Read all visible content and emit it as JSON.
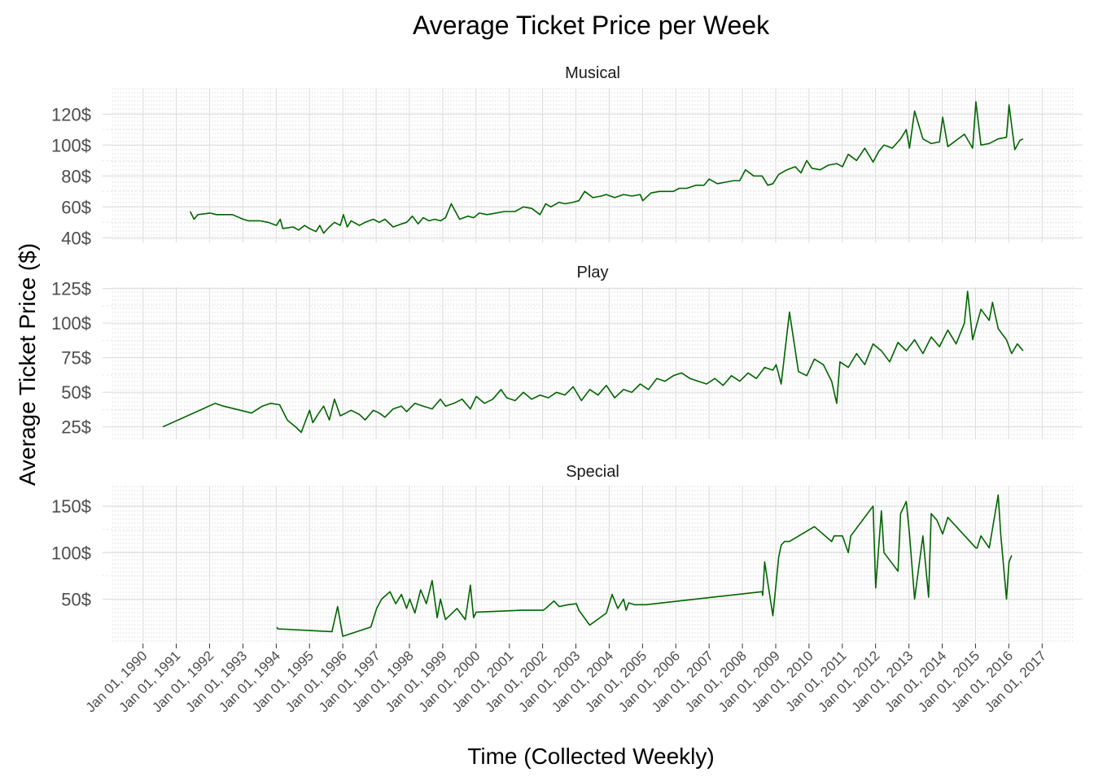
{
  "chart_data": {
    "type": "line",
    "title": "Average Ticket Price per Week",
    "xlabel": "Time (Collected Weekly)",
    "ylabel": "Average Ticket Price ($)",
    "x_type": "date",
    "xlim": [
      "1990-01-01",
      "2017-01-01"
    ],
    "x_ticks": [
      "Jan 01, 1990",
      "Jan 01, 1991",
      "Jan 01, 1992",
      "Jan 01, 1993",
      "Jan 01, 1994",
      "Jan 01, 1995",
      "Jan 01, 1996",
      "Jan 01, 1997",
      "Jan 01, 1998",
      "Jan 01, 1999",
      "Jan 01, 2000",
      "Jan 01, 2001",
      "Jan 01, 2002",
      "Jan 01, 2003",
      "Jan 01, 2004",
      "Jan 01, 2005",
      "Jan 01, 2006",
      "Jan 01, 2007",
      "Jan 01, 2008",
      "Jan 01, 2009",
      "Jan 01, 2010",
      "Jan 01, 2011",
      "Jan 01, 2012",
      "Jan 01, 2013",
      "Jan 01, 2014",
      "Jan 01, 2015",
      "Jan 01, 2016",
      "Jan 01, 2017"
    ],
    "grid": true,
    "legend": "none",
    "line_color": "#006400",
    "panels": [
      {
        "name": "Musical",
        "ylim": [
          37,
          137
        ],
        "y_ticks": [
          40,
          60,
          80,
          100,
          120
        ],
        "y_tick_labels": [
          "40$",
          "60$",
          "80$",
          "100$",
          "120$"
        ],
        "x": [
          "1991-06-03",
          "1991-07-15",
          "1991-08-26",
          "1992-01-06",
          "1992-03-16",
          "1992-09-07",
          "1993-01-04",
          "1993-03-01",
          "1993-07-05",
          "1993-10-04",
          "1994-01-03",
          "1994-02-14",
          "1994-03-14",
          "1994-07-04",
          "1994-09-05",
          "1994-11-07",
          "1995-01-02",
          "1995-03-13",
          "1995-04-24",
          "1995-06-05",
          "1995-08-07",
          "1995-10-02",
          "1995-12-04",
          "1996-01-08",
          "1996-02-19",
          "1996-04-01",
          "1996-07-01",
          "1996-09-02",
          "1996-12-02",
          "1997-02-03",
          "1997-04-07",
          "1997-07-07",
          "1997-10-06",
          "1997-12-01",
          "1998-02-02",
          "1998-04-06",
          "1998-06-01",
          "1998-08-03",
          "1998-10-05",
          "1998-12-07",
          "1999-02-01",
          "1999-04-05",
          "1999-07-05",
          "1999-10-04",
          "1999-12-06",
          "2000-02-07",
          "2000-05-01",
          "2000-08-07",
          "2000-11-06",
          "2001-01-01",
          "2001-03-05",
          "2001-06-04",
          "2001-09-03",
          "2001-12-03",
          "2002-02-04",
          "2002-04-01",
          "2002-07-01",
          "2002-09-02",
          "2002-12-02",
          "2003-02-03",
          "2003-04-07",
          "2003-07-07",
          "2003-10-06",
          "2003-12-01",
          "2004-03-01",
          "2004-06-07",
          "2004-09-06",
          "2004-12-06",
          "2005-01-03",
          "2005-04-04",
          "2005-07-04",
          "2005-10-03",
          "2005-12-05",
          "2006-02-06",
          "2006-05-01",
          "2006-08-07",
          "2006-11-06",
          "2007-01-01",
          "2007-04-02",
          "2007-07-02",
          "2007-10-01",
          "2007-12-03",
          "2008-02-04",
          "2008-05-05",
          "2008-08-04",
          "2008-10-06",
          "2008-12-01",
          "2009-02-02",
          "2009-05-04",
          "2009-08-03",
          "2009-10-05",
          "2009-12-07",
          "2010-02-01",
          "2010-05-03",
          "2010-08-02",
          "2010-11-01",
          "2011-01-03",
          "2011-03-07",
          "2011-06-06",
          "2011-09-05",
          "2011-12-05",
          "2012-02-06",
          "2012-04-02",
          "2012-07-02",
          "2012-10-01",
          "2012-12-03",
          "2013-01-07",
          "2013-03-04",
          "2013-06-03",
          "2013-09-02",
          "2013-12-02",
          "2014-01-06",
          "2014-03-03",
          "2014-06-02",
          "2014-09-01",
          "2014-12-01",
          "2015-01-05",
          "2015-03-02",
          "2015-06-01",
          "2015-09-07",
          "2015-12-07",
          "2016-01-04",
          "2016-03-07",
          "2016-05-02",
          "2016-06-06"
        ],
        "values": [
          57,
          52,
          55,
          56,
          55,
          55,
          52,
          51,
          51,
          50,
          48,
          52,
          46,
          47,
          45,
          48,
          46,
          44,
          48,
          43,
          47,
          50,
          48,
          55,
          47,
          51,
          48,
          50,
          52,
          50,
          52,
          47,
          49,
          50,
          54,
          49,
          53,
          51,
          52,
          51,
          53,
          62,
          52,
          54,
          53,
          56,
          55,
          56,
          57,
          57,
          57,
          60,
          59,
          55,
          62,
          60,
          63,
          62,
          63,
          64,
          70,
          66,
          67,
          68,
          66,
          68,
          67,
          68,
          64,
          69,
          70,
          70,
          70,
          72,
          72,
          74,
          74,
          78,
          75,
          76,
          77,
          77,
          84,
          80,
          80,
          74,
          75,
          81,
          84,
          86,
          82,
          90,
          85,
          84,
          87,
          88,
          86,
          94,
          90,
          98,
          89,
          96,
          100,
          98,
          104,
          110,
          98,
          122,
          104,
          101,
          102,
          118,
          99,
          103,
          107,
          98,
          128,
          100,
          101,
          104,
          105,
          126,
          97,
          103,
          104
        ]
      },
      {
        "name": "Play",
        "ylim": [
          16,
          126
        ],
        "y_ticks": [
          25,
          50,
          75,
          100,
          125
        ],
        "y_tick_labels": [
          "25$",
          "50$",
          "75$",
          "100$",
          "125$"
        ],
        "x": [
          "1990-08-06",
          "1992-03-02",
          "1992-06-01",
          "1993-04-05",
          "1993-08-02",
          "1993-11-01",
          "1994-02-07",
          "1994-05-02",
          "1994-08-01",
          "1994-10-03",
          "1995-01-02",
          "1995-02-06",
          "1995-04-03",
          "1995-06-05",
          "1995-08-07",
          "1995-10-02",
          "1995-12-04",
          "1996-02-05",
          "1996-04-01",
          "1996-07-01",
          "1996-09-02",
          "1996-12-02",
          "1997-02-03",
          "1997-04-07",
          "1997-07-07",
          "1997-10-06",
          "1997-12-01",
          "1998-03-02",
          "1998-06-01",
          "1998-09-07",
          "1998-12-07",
          "1999-02-01",
          "1999-05-03",
          "1999-08-02",
          "1999-11-01",
          "2000-01-03",
          "2000-04-03",
          "2000-07-03",
          "2000-10-02",
          "2000-12-04",
          "2001-03-05",
          "2001-06-04",
          "2001-09-03",
          "2001-12-03",
          "2002-03-04",
          "2002-06-03",
          "2002-09-02",
          "2002-12-02",
          "2003-03-03",
          "2003-06-02",
          "2003-09-01",
          "2003-12-01",
          "2004-03-01",
          "2004-06-07",
          "2004-09-06",
          "2004-12-06",
          "2005-03-07",
          "2005-06-06",
          "2005-09-05",
          "2005-12-05",
          "2006-03-06",
          "2006-06-05",
          "2006-09-04",
          "2006-12-04",
          "2007-03-05",
          "2007-06-04",
          "2007-09-03",
          "2007-12-03",
          "2008-03-03",
          "2008-06-02",
          "2008-09-01",
          "2008-12-01",
          "2009-01-05",
          "2009-03-02",
          "2009-06-01",
          "2009-09-07",
          "2009-12-07",
          "2010-03-01",
          "2010-06-07",
          "2010-09-06",
          "2010-11-01",
          "2010-12-06",
          "2011-03-07",
          "2011-06-06",
          "2011-09-05",
          "2011-12-05",
          "2012-03-05",
          "2012-06-04",
          "2012-09-03",
          "2012-12-03",
          "2013-03-04",
          "2013-06-03",
          "2013-09-02",
          "2013-12-02",
          "2014-03-03",
          "2014-06-02",
          "2014-09-01",
          "2014-10-06",
          "2014-12-01",
          "2015-03-02",
          "2015-06-01",
          "2015-07-06",
          "2015-09-07",
          "2015-12-07",
          "2016-02-01",
          "2016-04-04",
          "2016-06-06"
        ],
        "values": [
          25,
          42,
          40,
          35,
          40,
          42,
          41,
          30,
          25,
          21,
          37,
          28,
          34,
          40,
          30,
          45,
          33,
          35,
          37,
          34,
          30,
          37,
          35,
          32,
          38,
          40,
          36,
          42,
          40,
          38,
          45,
          40,
          42,
          45,
          38,
          47,
          42,
          45,
          52,
          46,
          44,
          50,
          45,
          48,
          46,
          50,
          48,
          54,
          44,
          52,
          48,
          55,
          46,
          52,
          50,
          56,
          52,
          60,
          58,
          62,
          64,
          60,
          58,
          56,
          60,
          55,
          62,
          58,
          64,
          60,
          68,
          66,
          70,
          56,
          108,
          65,
          62,
          74,
          70,
          58,
          42,
          72,
          68,
          78,
          70,
          85,
          80,
          72,
          86,
          80,
          88,
          78,
          90,
          83,
          95,
          85,
          100,
          123,
          88,
          110,
          102,
          115,
          96,
          88,
          78,
          85,
          80
        ]
      },
      {
        "name": "Special",
        "ylim": [
          4,
          172
        ],
        "y_ticks": [
          50,
          100,
          150
        ],
        "y_tick_labels": [
          "50$",
          "100$",
          "150$"
        ],
        "x": [
          "1994-01-10",
          "1994-01-17",
          "1995-09-04",
          "1995-11-06",
          "1996-01-01",
          "1996-11-04",
          "1997-01-06",
          "1997-03-03",
          "1997-06-02",
          "1997-08-04",
          "1997-10-06",
          "1997-12-01",
          "1998-01-05",
          "1998-03-02",
          "1998-05-04",
          "1998-07-06",
          "1998-09-07",
          "1998-11-02",
          "1998-12-07",
          "1999-02-01",
          "1999-06-07",
          "1999-09-06",
          "1999-11-01",
          "1999-12-06",
          "2000-01-03",
          "2000-01-10",
          "2001-05-07",
          "2002-01-07",
          "2002-02-04",
          "2002-05-06",
          "2002-07-01",
          "2002-10-07",
          "2003-01-06",
          "2003-02-03",
          "2003-06-02",
          "2003-12-01",
          "2004-02-02",
          "2004-04-05",
          "2004-06-07",
          "2004-07-05",
          "2004-08-02",
          "2004-10-04",
          "2005-01-03",
          "2005-02-07",
          "2008-08-04",
          "2008-08-11",
          "2008-09-01",
          "2008-12-01",
          "2009-02-02",
          "2009-03-02",
          "2009-04-06",
          "2009-06-01",
          "2010-03-01",
          "2010-09-06",
          "2010-10-04",
          "2011-01-03",
          "2011-03-07",
          "2011-04-04",
          "2011-12-05",
          "2012-01-02",
          "2012-03-05",
          "2012-04-02",
          "2012-09-03",
          "2012-10-01",
          "2012-12-03",
          "2013-01-07",
          "2013-03-04",
          "2013-06-03",
          "2013-08-05",
          "2013-09-02",
          "2013-10-07",
          "2013-11-04",
          "2014-01-06",
          "2014-03-03",
          "2015-01-05",
          "2015-01-19",
          "2015-03-02",
          "2015-06-01",
          "2015-09-07",
          "2015-10-05",
          "2015-12-07",
          "2016-01-04",
          "2016-02-01"
        ],
        "values": [
          20,
          18,
          15,
          42,
          10,
          20,
          40,
          50,
          58,
          45,
          55,
          40,
          50,
          35,
          60,
          45,
          70,
          30,
          50,
          28,
          40,
          28,
          65,
          30,
          36,
          36,
          38,
          38,
          40,
          48,
          42,
          44,
          45,
          38,
          22,
          35,
          55,
          40,
          50,
          38,
          46,
          44,
          44,
          44,
          58,
          54,
          90,
          32,
          95,
          108,
          112,
          112,
          128,
          112,
          118,
          118,
          100,
          118,
          150,
          62,
          145,
          100,
          80,
          142,
          155,
          120,
          50,
          118,
          52,
          142,
          138,
          135,
          120,
          138,
          105,
          105,
          118,
          105,
          162,
          120,
          50,
          90,
          97
        ]
      }
    ]
  }
}
